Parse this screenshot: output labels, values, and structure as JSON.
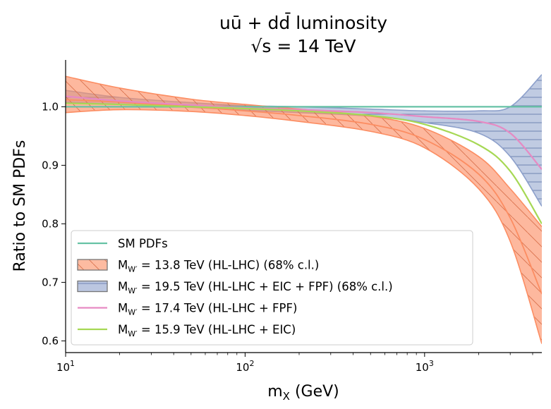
{
  "chart_data": {
    "type": "line",
    "title_line1": "uū + dd̄ luminosity",
    "title_line2": "√s = 14 TeV",
    "xlabel": "m",
    "xlabel_sub": "X",
    "xlabel_unit": " (GeV)",
    "ylabel": "Ratio to SM PDFs",
    "xscale": "log",
    "xlim": [
      10,
      4500
    ],
    "ylim": [
      0.58,
      1.08
    ],
    "grid": false,
    "legend_position": "lower-left",
    "x_ticks": [
      {
        "value": 10,
        "base": "10",
        "exp": "1"
      },
      {
        "value": 100,
        "base": "10",
        "exp": "2"
      },
      {
        "value": 1000,
        "base": "10",
        "exp": "3"
      }
    ],
    "y_ticks": [
      {
        "value": 0.6,
        "label": "0.6"
      },
      {
        "value": 0.7,
        "label": "0.7"
      },
      {
        "value": 0.8,
        "label": "0.8"
      },
      {
        "value": 0.9,
        "label": "0.9"
      },
      {
        "value": 1.0,
        "label": "1.0"
      }
    ],
    "x": [
      10,
      20,
      50,
      100,
      200,
      500,
      1000,
      2000,
      3000,
      4500
    ],
    "bands": [
      {
        "name": "HL-LHC",
        "color": "#fc8d62",
        "hatch": "diagonal",
        "central": [
          1.012,
          1.008,
          1.0,
          0.993,
          0.985,
          0.97,
          0.944,
          0.885,
          0.81,
          0.68
        ],
        "upper": [
          1.052,
          1.032,
          1.013,
          1.004,
          0.996,
          0.984,
          0.963,
          0.915,
          0.86,
          0.795
        ],
        "lower": [
          0.99,
          0.995,
          0.992,
          0.985,
          0.975,
          0.958,
          0.93,
          0.86,
          0.77,
          0.595
        ]
      },
      {
        "name": "HL-LHC + EIC + FPF",
        "color": "#8da0cb",
        "hatch": "horizontal",
        "central": [
          1.018,
          1.01,
          1.003,
          0.998,
          0.995,
          0.99,
          0.983,
          0.975,
          0.955,
          0.893
        ],
        "upper": [
          1.028,
          1.016,
          1.007,
          1.002,
          1.0,
          0.996,
          0.993,
          0.993,
          1.0,
          1.055
        ],
        "lower": [
          1.008,
          1.004,
          0.999,
          0.994,
          0.99,
          0.984,
          0.973,
          0.955,
          0.915,
          0.83
        ]
      }
    ],
    "series": [
      {
        "name": "SM PDFs",
        "color": "#66c2a5",
        "values": [
          1.0,
          1.0,
          1.0,
          1.0,
          1.0,
          1.0,
          1.0,
          1.0,
          1.0,
          1.0
        ]
      },
      {
        "name": "M_W' = 17.4 TeV (HL-LHC + FPF)",
        "color": "#e78ac3",
        "values": [
          1.018,
          1.01,
          1.003,
          0.998,
          0.995,
          0.99,
          0.983,
          0.975,
          0.955,
          0.893
        ]
      },
      {
        "name": "M_W' = 15.9 TeV (HL-LHC + EIC)",
        "color": "#a6d854",
        "values": [
          1.006,
          1.004,
          1.0,
          0.997,
          0.993,
          0.985,
          0.97,
          0.935,
          0.89,
          0.8
        ]
      }
    ],
    "legend": [
      {
        "kind": "line",
        "color": "#66c2a5",
        "text": "SM PDFs",
        "sub": ""
      },
      {
        "kind": "hatch-diagonal",
        "color": "#fc8d62",
        "text": "M",
        "sub": "W′",
        "rest": " = 13.8 TeV (HL-LHC) (68% c.l.)"
      },
      {
        "kind": "hatch-horizontal",
        "color": "#8da0cb",
        "text": "M",
        "sub": "W′",
        "rest": " = 19.5 TeV (HL-LHC + EIC + FPF) (68% c.l.)"
      },
      {
        "kind": "line",
        "color": "#e78ac3",
        "text": "M",
        "sub": "W′",
        "rest": " = 17.4 TeV (HL-LHC + FPF)"
      },
      {
        "kind": "line",
        "color": "#a6d854",
        "text": "M",
        "sub": "W′",
        "rest": " = 15.9 TeV (HL-LHC + EIC)"
      }
    ]
  }
}
